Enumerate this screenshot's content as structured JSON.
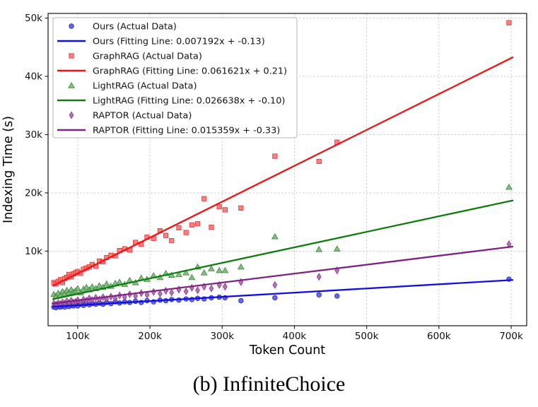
{
  "caption": "(b) InfiniteChoice",
  "chart_data": {
    "type": "scatter",
    "title": "",
    "xlabel": "Token Count",
    "ylabel": "Indexing Time (s)",
    "grid": true,
    "legend_position": "upper left",
    "xlim": [
      59000,
      721500
    ],
    "ylim": [
      -2800,
      50800
    ],
    "fit_range": [
      66000,
      702000
    ],
    "grid_color": "#cdcdcd",
    "spine_color": "#262626",
    "xticks": [
      {
        "value": 100000,
        "label": "100k"
      },
      {
        "value": 200000,
        "label": "200k"
      },
      {
        "value": 300000,
        "label": "300k"
      },
      {
        "value": 400000,
        "label": "400k"
      },
      {
        "value": 500000,
        "label": "500k"
      },
      {
        "value": 600000,
        "label": "600k"
      },
      {
        "value": 700000,
        "label": "700k"
      }
    ],
    "yticks": [
      {
        "value": 10000,
        "label": "10k"
      },
      {
        "value": 20000,
        "label": "20k"
      },
      {
        "value": 30000,
        "label": "30k"
      },
      {
        "value": 40000,
        "label": "40k"
      },
      {
        "value": 50000,
        "label": "50k"
      }
    ],
    "x": [
      67000,
      70000,
      73000,
      76000,
      79000,
      82000,
      85000,
      88000,
      91000,
      94000,
      97000,
      100000,
      104000,
      108000,
      112000,
      116000,
      120000,
      125000,
      130000,
      135000,
      140000,
      146000,
      152000,
      158000,
      165000,
      172000,
      180000,
      188000,
      196000,
      205000,
      214000,
      222000,
      230000,
      240000,
      250000,
      258000,
      266000,
      275000,
      285000,
      296000,
      304000,
      326000,
      373000,
      434000,
      459000,
      697000
    ],
    "series": [
      {
        "name": "Ours",
        "marker": "circle",
        "line_color": "#0f0fe0",
        "marker_fill": "#4e4ee0",
        "marker_edge": "#2424c8",
        "legend_scatter": "Ours (Actual Data)",
        "legend_fit": "Ours (Fitting Line: 0.007192x + -0.13)",
        "fit": {
          "slope": 0.007192,
          "intercept": -0.13
        },
        "y": [
          400,
          300,
          500,
          400,
          600,
          400,
          700,
          500,
          700,
          600,
          800,
          600,
          900,
          700,
          1000,
          800,
          1000,
          900,
          1100,
          900,
          1200,
          1000,
          1300,
          1100,
          1300,
          1200,
          1400,
          1200,
          1500,
          1300,
          1600,
          1500,
          1700,
          1600,
          1800,
          1700,
          1900,
          1800,
          2000,
          2100,
          2000,
          1500,
          2000,
          2500,
          2300,
          5200
        ]
      },
      {
        "name": "GraphRAG",
        "marker": "square",
        "line_color": "#f01414",
        "marker_fill": "#f96a6a",
        "marker_edge": "#e23333",
        "legend_scatter": "GraphRAG (Actual Data)",
        "legend_fit": "GraphRAG (Fitting Line: 0.061621x + 0.21)",
        "fit": {
          "slope": 0.061621,
          "intercept": 0.21
        },
        "y": [
          4600,
          4400,
          4800,
          5100,
          4600,
          5300,
          5500,
          6000,
          5600,
          6100,
          6300,
          6500,
          6200,
          6900,
          7100,
          7300,
          7700,
          7400,
          8300,
          8200,
          8900,
          9300,
          9200,
          10100,
          10400,
          10200,
          11500,
          11200,
          12400,
          12200,
          13500,
          12700,
          11800,
          14000,
          13200,
          14500,
          14700,
          19000,
          14100,
          17600,
          17100,
          17400,
          26300,
          25400,
          28700,
          49200
        ]
      },
      {
        "name": "LightRAG",
        "marker": "triangle",
        "line_color": "#0e7d0e",
        "marker_fill": "#6fb26f",
        "marker_edge": "#3f8c3f",
        "legend_scatter": "LightRAG (Actual Data)",
        "legend_fit": "LightRAG (Fitting Line: 0.026638x + -0.10)",
        "fit": {
          "slope": 0.026638,
          "intercept": -0.1
        },
        "y": [
          2600,
          2300,
          2800,
          2500,
          3100,
          2700,
          3300,
          2900,
          3400,
          3000,
          3200,
          3600,
          2900,
          3500,
          3800,
          3400,
          3900,
          3600,
          4100,
          3800,
          4400,
          4000,
          4500,
          4700,
          4300,
          5000,
          4600,
          5400,
          5200,
          5800,
          5500,
          6200,
          5900,
          6000,
          6300,
          5500,
          7300,
          6300,
          7000,
          6700,
          6700,
          7300,
          12500,
          10300,
          10400,
          21000
        ]
      },
      {
        "name": "RAPTOR",
        "marker": "diamond",
        "line_color": "#7e2380",
        "marker_fill": "#a75aa7",
        "marker_edge": "#8a3a8a",
        "legend_scatter": "RAPTOR (Actual Data)",
        "legend_fit": "RAPTOR (Fitting Line: 0.015359x + -0.33)",
        "fit": {
          "slope": 0.015359,
          "intercept": -0.33
        },
        "y": [
          1000,
          800,
          1100,
          900,
          1200,
          1000,
          1400,
          1100,
          1500,
          1200,
          1300,
          1600,
          1200,
          1700,
          1500,
          1900,
          1600,
          2000,
          1700,
          2100,
          1800,
          2200,
          1900,
          2400,
          2100,
          2600,
          2300,
          2800,
          2500,
          3000,
          2700,
          3200,
          2900,
          3400,
          3100,
          3700,
          3300,
          3900,
          3600,
          4200,
          3900,
          4700,
          4200,
          5600,
          6700,
          11200
        ]
      }
    ]
  }
}
